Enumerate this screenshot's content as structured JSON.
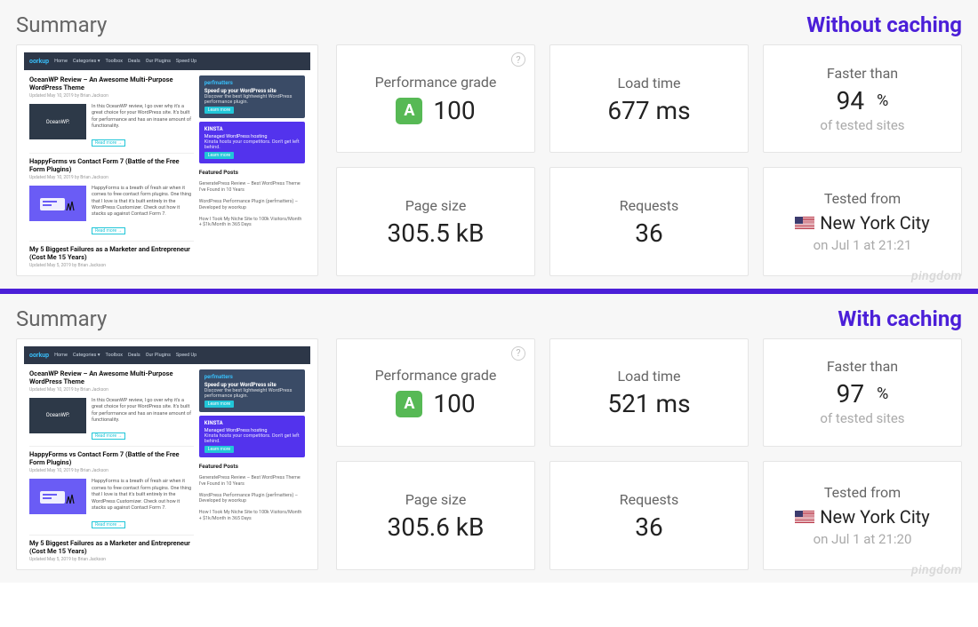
{
  "colors": {
    "bg": "#f7f7f7",
    "card_border": "#e5e5e5",
    "label_color": "#666666",
    "value_color": "#222222",
    "sub_color": "#aaaaaa",
    "badge_bg": "#57b955",
    "divider": "#4b1fd8",
    "tag_purple": "#4b1fd8",
    "watermark": "#d7d7d7"
  },
  "thumb": {
    "brand": "oorkup",
    "menu": [
      "Home",
      "Categories ▾",
      "Toolbox",
      "Deals",
      "Our Plugins",
      "Speed Up"
    ],
    "post1_title": "OceanWP Review – An Awesome Multi-Purpose WordPress Theme",
    "post1_box": "OceanWP.",
    "post1_desc": "In this OceanWP review, I go over why it's a great choice for your WordPress site. It's built for performance and has an insane amount of functionality.",
    "post2_title": "HappyForms vs Contact Form 7 (Battle of the Free Form Plugins)",
    "post2_desc": "HappyForms is a breath of fresh air when it comes to free contact form plugins. One thing that I love is that it's built entirely in the WordPress Customizer. Check out how it stacks up against Contact Form 7.",
    "post3_title": "My 5 Biggest Failures as a Marketer and Entrepreneur (Cost Me 15 Years)",
    "side_perf_brand": "perfmatters",
    "side_perf_head": "Speed up your WordPress site",
    "side_perf_desc": "Discover the best lightweight WordPress performance plugin.",
    "side_kin_brand": "KINSTA",
    "side_kin_head": "Managed WordPress hosting",
    "side_kin_desc": "Kinsta hosts your competitors. Don't get left behind.",
    "learn": "Learn more",
    "read": "Read more →",
    "fp_head": "Featured Posts",
    "fp1": "GeneratePress Review – Best WordPress Theme I've Found in 10 Years",
    "fp2": "WordPress Performance Plugin (perfmatters) – Developed by woorkup",
    "fp3": "How I Took My Niche Site to 100k Visitors/Month + $1k/Month in 365 Days"
  },
  "panels": [
    {
      "summary_title": "Summary",
      "tag": "Without caching",
      "tag_color": "#4b1fd8",
      "watermark": "pingdom",
      "metrics": {
        "perf_label": "Performance grade",
        "perf_badge": "A",
        "perf_value": "100",
        "load_label": "Load time",
        "load_value": "677 ms",
        "faster_label": "Faster than",
        "faster_value": "94",
        "faster_unit": "%",
        "faster_sub": "of tested sites",
        "size_label": "Page size",
        "size_value": "305.5 kB",
        "req_label": "Requests",
        "req_value": "36",
        "tested_label": "Tested from",
        "tested_value": "New York City",
        "tested_sub": "on Jul 1 at 21:21"
      }
    },
    {
      "summary_title": "Summary",
      "tag": "With caching",
      "tag_color": "#4b1fd8",
      "watermark": "pingdom",
      "metrics": {
        "perf_label": "Performance grade",
        "perf_badge": "A",
        "perf_value": "100",
        "load_label": "Load time",
        "load_value": "521 ms",
        "faster_label": "Faster than",
        "faster_value": "97",
        "faster_unit": "%",
        "faster_sub": "of tested sites",
        "size_label": "Page size",
        "size_value": "305.6 kB",
        "req_label": "Requests",
        "req_value": "36",
        "tested_label": "Tested from",
        "tested_value": "New York City",
        "tested_sub": "on Jul 1 at 21:20"
      }
    }
  ]
}
